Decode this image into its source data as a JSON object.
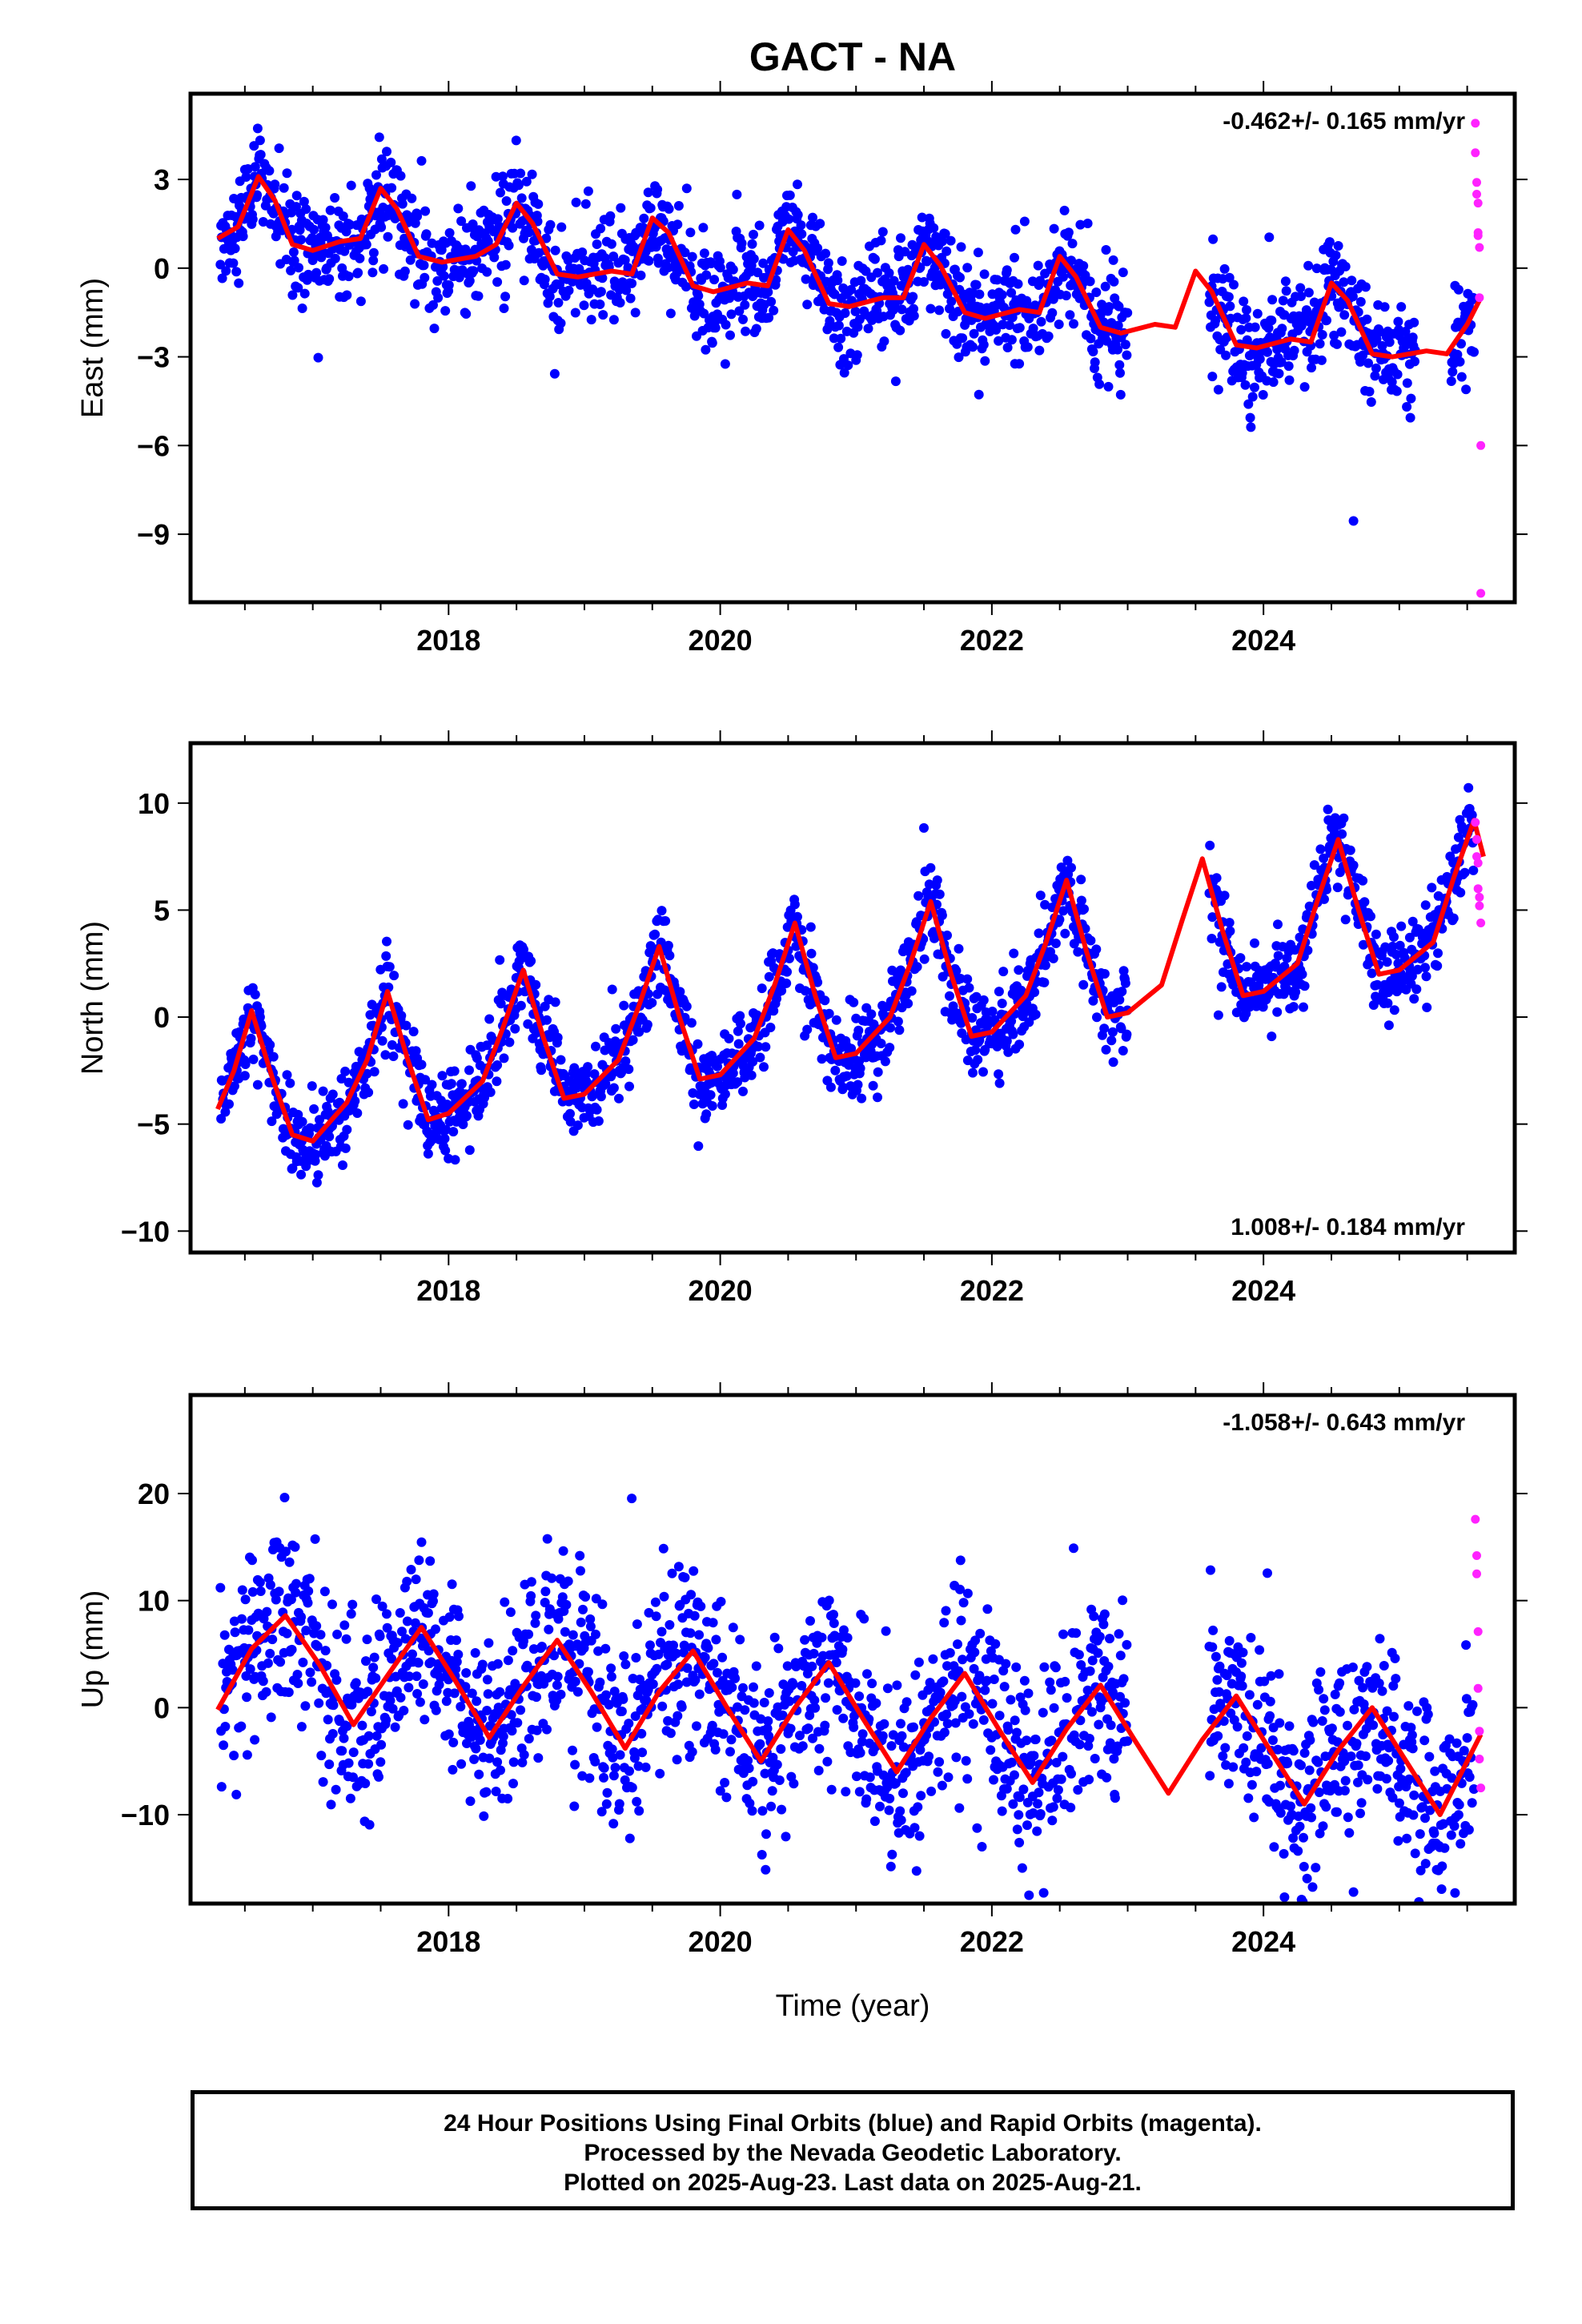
{
  "title": "GACT - NA",
  "chart_data": [
    {
      "type": "scatter",
      "ylabel": "East (mm)",
      "xlabel": "",
      "xlim": [
        2016.1,
        2025.85
      ],
      "ylim": [
        -11.3,
        5.9
      ],
      "xticks": [
        2018,
        2020,
        2022,
        2024
      ],
      "yticks": [
        -9,
        -6,
        -3,
        0,
        3
      ],
      "rate_label": "-0.462+/- 0.165 mm/yr",
      "rate_position": "top-right",
      "series": [
        {
          "role": "final",
          "color": "#0000ff",
          "kind": "points",
          "amp": 1.0,
          "noise": 0.9
        },
        {
          "role": "rapid",
          "color": "#ff22ff",
          "kind": "points",
          "x": [
            2025.56,
            2025.56,
            2025.57,
            2025.57,
            2025.58,
            2025.58,
            2025.58,
            2025.59,
            2025.59,
            2025.6,
            2025.6
          ],
          "y": [
            4.9,
            3.9,
            2.9,
            2.5,
            2.2,
            1.2,
            1.1,
            0.7,
            -1.0,
            -6.0,
            -11.0
          ]
        },
        {
          "role": "model",
          "color": "#ff0000",
          "kind": "line",
          "x": [
            2016.3,
            2016.45,
            2016.6,
            2016.72,
            2016.85,
            2017.0,
            2017.2,
            2017.35,
            2017.5,
            2017.62,
            2017.78,
            2017.95,
            2018.2,
            2018.35,
            2018.5,
            2018.62,
            2018.8,
            2018.95,
            2019.2,
            2019.35,
            2019.5,
            2019.62,
            2019.8,
            2019.95,
            2020.2,
            2020.35,
            2020.5,
            2020.62,
            2020.8,
            2020.95,
            2021.2,
            2021.35,
            2021.5,
            2021.62,
            2021.8,
            2021.95,
            2022.2,
            2022.35,
            2022.5,
            2022.62,
            2022.8,
            2022.95,
            2023.2,
            2023.35,
            2023.5,
            2023.62,
            2023.8,
            2023.95,
            2024.2,
            2024.35,
            2024.5,
            2024.62,
            2024.8,
            2024.95,
            2025.2,
            2025.35,
            2025.5,
            2025.6
          ],
          "y": [
            1.0,
            1.4,
            3.1,
            2.3,
            0.8,
            0.6,
            0.9,
            1.0,
            2.7,
            2.0,
            0.4,
            0.2,
            0.4,
            0.8,
            2.2,
            1.5,
            -0.2,
            -0.3,
            -0.1,
            -0.2,
            1.7,
            1.2,
            -0.6,
            -0.8,
            -0.5,
            -0.6,
            1.3,
            0.6,
            -1.2,
            -1.3,
            -1.0,
            -1.0,
            0.8,
            0.1,
            -1.5,
            -1.7,
            -1.4,
            -1.5,
            0.4,
            -0.3,
            -2.0,
            -2.2,
            -1.9,
            -2.0,
            -0.1,
            -0.8,
            -2.6,
            -2.7,
            -2.4,
            -2.5,
            -0.5,
            -1.1,
            -2.9,
            -3.0,
            -2.8,
            -2.9,
            -1.9,
            -1.0
          ]
        }
      ]
    },
    {
      "type": "scatter",
      "ylabel": "North (mm)",
      "xlabel": "",
      "xlim": [
        2016.1,
        2025.85
      ],
      "ylim": [
        -11.0,
        12.8
      ],
      "xticks": [
        2018,
        2020,
        2022,
        2024
      ],
      "yticks": [
        -10,
        -5,
        0,
        5,
        10
      ],
      "rate_label": "1.008+/- 0.184 mm/yr",
      "rate_position": "bottom-right",
      "series": [
        {
          "role": "final",
          "color": "#0000ff",
          "kind": "points",
          "amp": 1.0,
          "noise": 1.0
        },
        {
          "role": "rapid",
          "color": "#ff22ff",
          "kind": "points",
          "x": [
            2025.56,
            2025.57,
            2025.57,
            2025.58,
            2025.58,
            2025.59,
            2025.59,
            2025.6
          ],
          "y": [
            9.1,
            8.3,
            7.5,
            7.2,
            6.0,
            5.6,
            5.2,
            4.4
          ]
        },
        {
          "role": "model",
          "color": "#ff0000",
          "kind": "line",
          "x": [
            2016.3,
            2016.42,
            2016.55,
            2016.7,
            2016.85,
            2017.0,
            2017.25,
            2017.4,
            2017.55,
            2017.7,
            2017.85,
            2018.0,
            2018.25,
            2018.4,
            2018.55,
            2018.7,
            2018.85,
            2019.0,
            2019.25,
            2019.4,
            2019.55,
            2019.7,
            2019.85,
            2020.0,
            2020.25,
            2020.4,
            2020.55,
            2020.7,
            2020.85,
            2021.0,
            2021.25,
            2021.4,
            2021.55,
            2021.7,
            2021.85,
            2022.0,
            2022.25,
            2022.4,
            2022.55,
            2022.7,
            2022.85,
            2023.0,
            2023.25,
            2023.4,
            2023.55,
            2023.7,
            2023.85,
            2024.0,
            2024.25,
            2024.4,
            2024.55,
            2024.7,
            2024.85,
            2025.0,
            2025.25,
            2025.4,
            2025.55,
            2025.62
          ],
          "y": [
            -4.3,
            -2.5,
            0.3,
            -2.8,
            -5.5,
            -5.8,
            -4.0,
            -2.0,
            1.2,
            -2.0,
            -4.8,
            -4.5,
            -3.0,
            -0.5,
            2.2,
            -1.0,
            -3.8,
            -3.6,
            -2.0,
            0.5,
            3.3,
            0.0,
            -2.9,
            -2.7,
            -1.0,
            1.5,
            4.4,
            1.0,
            -1.9,
            -1.7,
            0.0,
            2.5,
            5.4,
            2.0,
            -0.9,
            -0.7,
            1.0,
            3.5,
            6.4,
            3.0,
            0.0,
            0.2,
            1.5,
            4.5,
            7.4,
            4.0,
            1.0,
            1.2,
            2.5,
            5.5,
            8.3,
            5.0,
            2.0,
            2.2,
            3.5,
            6.5,
            9.2,
            7.5
          ]
        }
      ]
    },
    {
      "type": "scatter",
      "ylabel": "Up (mm)",
      "xlabel": "Time (year)",
      "xlim": [
        2016.1,
        2025.85
      ],
      "ylim": [
        -18.3,
        29.2
      ],
      "xticks": [
        2018,
        2020,
        2022,
        2024
      ],
      "yticks": [
        -10,
        0,
        10,
        20
      ],
      "rate_label": "-1.058+/- 0.643 mm/yr",
      "rate_position": "top-right",
      "series": [
        {
          "role": "final",
          "color": "#0000ff",
          "kind": "points",
          "amp": 1.0,
          "noise": 4.5
        },
        {
          "role": "rapid",
          "color": "#ff22ff",
          "kind": "points",
          "x": [
            2025.56,
            2025.57,
            2025.57,
            2025.58,
            2025.58,
            2025.59,
            2025.59,
            2025.6
          ],
          "y": [
            17.6,
            14.2,
            12.5,
            7.1,
            1.8,
            -2.2,
            -4.8,
            -7.5
          ]
        },
        {
          "role": "model",
          "color": "#ff0000",
          "kind": "line",
          "x": [
            2016.3,
            2016.55,
            2016.8,
            2017.05,
            2017.3,
            2017.55,
            2017.8,
            2018.05,
            2018.3,
            2018.55,
            2018.8,
            2019.05,
            2019.3,
            2019.55,
            2019.8,
            2020.05,
            2020.3,
            2020.55,
            2020.8,
            2021.05,
            2021.3,
            2021.55,
            2021.8,
            2022.05,
            2022.3,
            2022.55,
            2022.8,
            2023.05,
            2023.3,
            2023.55,
            2023.8,
            2024.05,
            2024.3,
            2024.55,
            2024.8,
            2025.05,
            2025.3,
            2025.6
          ],
          "y": [
            -0.2,
            5.5,
            8.6,
            4.0,
            -1.6,
            3.0,
            7.5,
            2.5,
            -2.8,
            2.0,
            6.3,
            1.5,
            -3.8,
            1.5,
            5.3,
            0.0,
            -5.0,
            0.0,
            4.2,
            -1.0,
            -6.0,
            -1.0,
            3.2,
            -2.0,
            -7.0,
            -2.0,
            2.1,
            -3.0,
            -8.0,
            -3.0,
            1.1,
            -4.0,
            -9.0,
            -4.0,
            0.0,
            -5.0,
            -10.0,
            -2.5
          ]
        }
      ]
    }
  ],
  "footer": {
    "line1": "24 Hour Positions Using Final Orbits (blue) and Rapid Orbits (magenta).",
    "line2": "Processed by the Nevada Geodetic Laboratory.",
    "line3": "Plotted on 2025-Aug-23. Last data on 2025-Aug-21."
  }
}
